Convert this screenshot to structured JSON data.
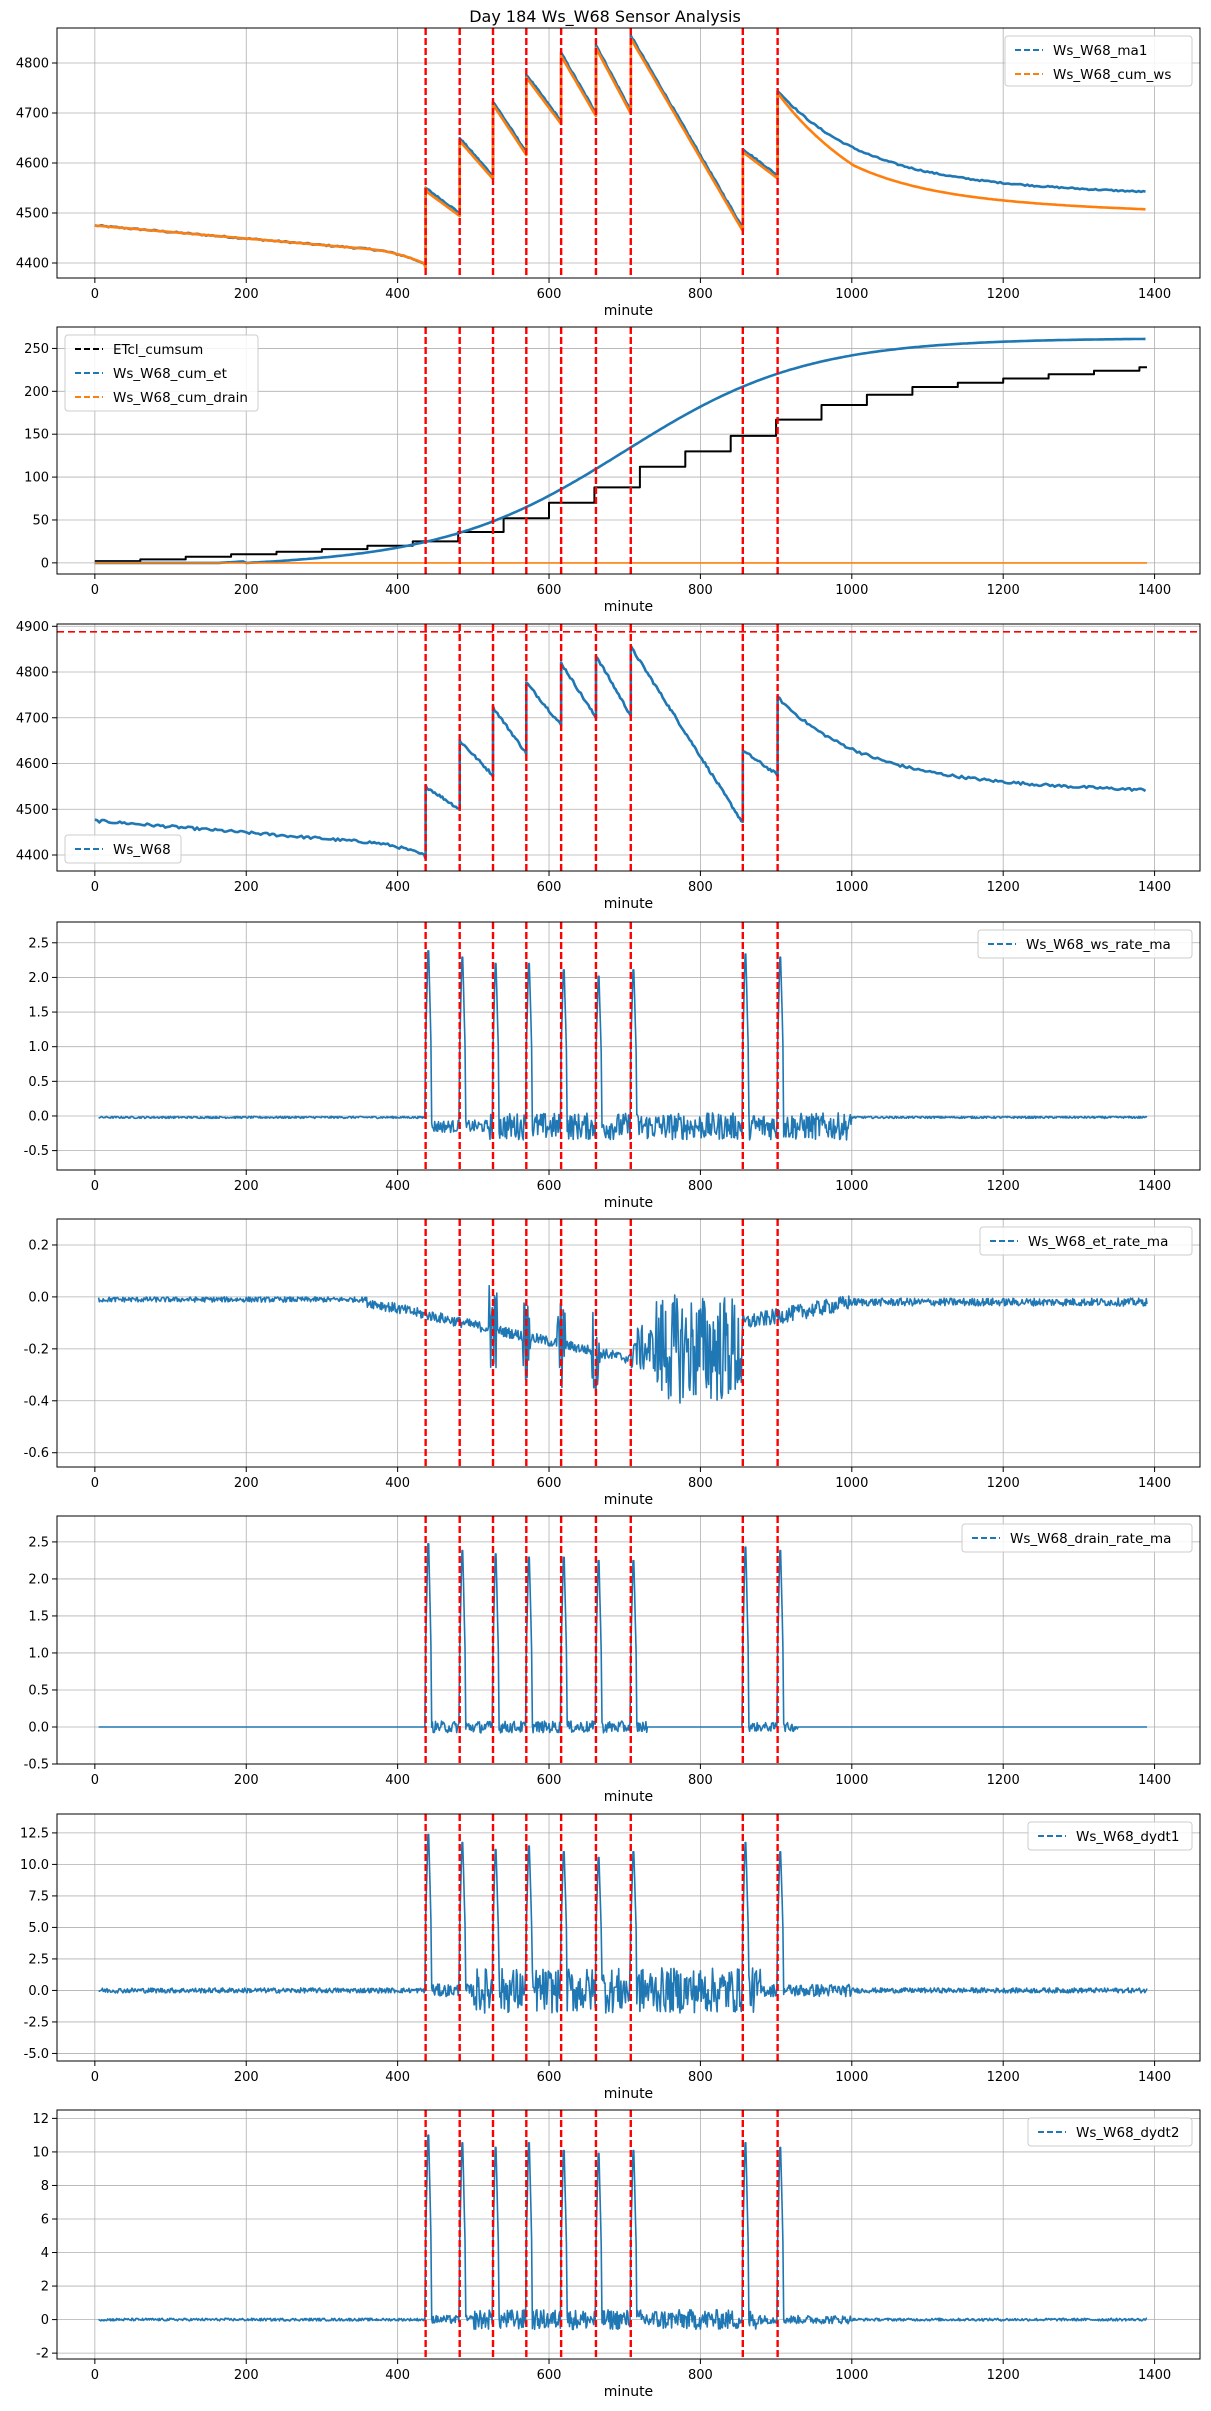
{
  "title": "Day 184 Ws_W68 Sensor Analysis",
  "colors": {
    "blue": "#1f77b4",
    "orange": "#ff7f0e",
    "black": "#000000",
    "red": "#ff0000",
    "grid": "#b0b0b0"
  },
  "event_lines": [
    437,
    482,
    526,
    570,
    616,
    662,
    708,
    856,
    902
  ],
  "chart_data": [
    {
      "type": "line",
      "xlabel": "minute",
      "legend": "top-right",
      "xlim": [
        -50,
        1460
      ],
      "ylim": [
        4370,
        4870
      ],
      "xticks": [
        0,
        200,
        400,
        600,
        800,
        1000,
        1200,
        1400
      ],
      "yticks": [
        4400,
        4500,
        4600,
        4700,
        4800
      ],
      "series": [
        {
          "name": "Ws_W68_ma1",
          "color": "#1f77b4",
          "kind": "ws_ma1"
        },
        {
          "name": "Ws_W68_cum_ws",
          "color": "#ff7f0e",
          "kind": "ws_cum"
        }
      ]
    },
    {
      "type": "line",
      "xlabel": "minute",
      "legend": "top-left",
      "xlim": [
        -50,
        1460
      ],
      "ylim": [
        -13,
        275
      ],
      "xticks": [
        0,
        200,
        400,
        600,
        800,
        1000,
        1200,
        1400
      ],
      "yticks": [
        0,
        50,
        100,
        150,
        200,
        250
      ],
      "series": [
        {
          "name": "ETcl_cumsum",
          "color": "#000000",
          "kind": "etcl_step"
        },
        {
          "name": "Ws_W68_cum_et",
          "color": "#1f77b4",
          "kind": "cum_et"
        },
        {
          "name": "Ws_W68_cum_drain",
          "color": "#ff7f0e",
          "kind": "cum_drain"
        }
      ]
    },
    {
      "type": "line",
      "xlabel": "minute",
      "legend": "bottom-left",
      "xlim": [
        -50,
        1460
      ],
      "ylim": [
        4365,
        4905
      ],
      "xticks": [
        0,
        200,
        400,
        600,
        800,
        1000,
        1200,
        1400
      ],
      "yticks": [
        4400,
        4500,
        4600,
        4700,
        4800,
        4900
      ],
      "hline": 4888,
      "series": [
        {
          "name": "Ws_W68",
          "color": "#1f77b4",
          "kind": "ws"
        }
      ]
    },
    {
      "type": "line",
      "xlabel": "minute",
      "legend": "top-right",
      "xlim": [
        -50,
        1460
      ],
      "ylim": [
        -0.78,
        2.8
      ],
      "xticks": [
        0,
        200,
        400,
        600,
        800,
        1000,
        1200,
        1400
      ],
      "yticks": [
        -0.5,
        0.0,
        0.5,
        1.0,
        1.5,
        2.0,
        2.5
      ],
      "series": [
        {
          "name": "Ws_W68_ws_rate_ma",
          "color": "#1f77b4",
          "kind": "ws_rate"
        }
      ]
    },
    {
      "type": "line",
      "xlabel": "minute",
      "legend": "top-right",
      "xlim": [
        -50,
        1460
      ],
      "ylim": [
        -0.655,
        0.3
      ],
      "xticks": [
        0,
        200,
        400,
        600,
        800,
        1000,
        1200,
        1400
      ],
      "yticks": [
        -0.6,
        -0.4,
        -0.2,
        0.0,
        0.2
      ],
      "series": [
        {
          "name": "Ws_W68_et_rate_ma",
          "color": "#1f77b4",
          "kind": "et_rate"
        }
      ]
    },
    {
      "type": "line",
      "xlabel": "minute",
      "legend": "top-right",
      "xlim": [
        -50,
        1460
      ],
      "ylim": [
        -0.5,
        2.85
      ],
      "xticks": [
        0,
        200,
        400,
        600,
        800,
        1000,
        1200,
        1400
      ],
      "yticks": [
        -0.5,
        0.0,
        0.5,
        1.0,
        1.5,
        2.0,
        2.5
      ],
      "series": [
        {
          "name": "Ws_W68_drain_rate_ma",
          "color": "#1f77b4",
          "kind": "drain_rate"
        }
      ]
    },
    {
      "type": "line",
      "xlabel": "minute",
      "legend": "top-right",
      "xlim": [
        -50,
        1460
      ],
      "ylim": [
        -5.6,
        14.0
      ],
      "xticks": [
        0,
        200,
        400,
        600,
        800,
        1000,
        1200,
        1400
      ],
      "yticks": [
        -5.0,
        -2.5,
        0.0,
        2.5,
        5.0,
        7.5,
        10.0,
        12.5
      ],
      "series": [
        {
          "name": "Ws_W68_dydt1",
          "color": "#1f77b4",
          "kind": "dydt1"
        }
      ]
    },
    {
      "type": "line",
      "xlabel": "minute",
      "legend": "top-right",
      "xlim": [
        -50,
        1460
      ],
      "ylim": [
        -2.35,
        12.5
      ],
      "xticks": [
        0,
        200,
        400,
        600,
        800,
        1000,
        1200,
        1400
      ],
      "yticks": [
        -2,
        0,
        2,
        4,
        6,
        8,
        10,
        12
      ],
      "series": [
        {
          "name": "Ws_W68_dydt2",
          "color": "#1f77b4",
          "kind": "dydt2"
        }
      ]
    }
  ]
}
